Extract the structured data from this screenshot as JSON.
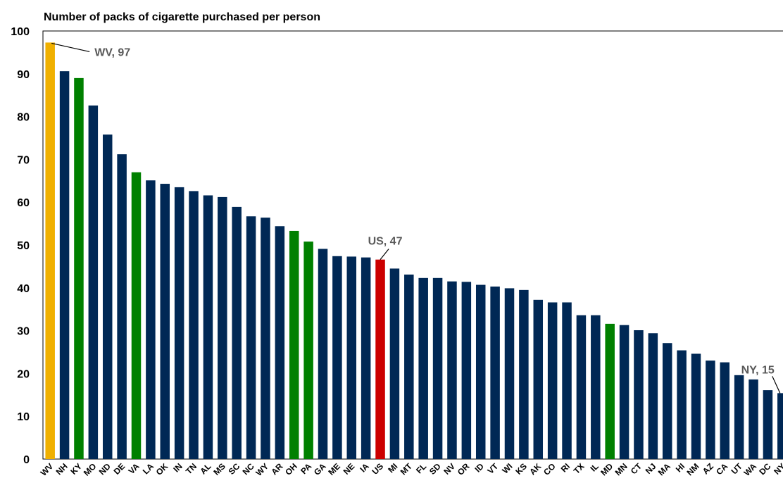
{
  "chart_data": {
    "type": "bar",
    "title": "Number of packs of cigarette purchased per person",
    "xlabel": "",
    "ylabel": "",
    "ylim": [
      0,
      100
    ],
    "yticks": [
      0,
      10,
      20,
      30,
      40,
      50,
      60,
      70,
      80,
      90,
      100
    ],
    "grid": false,
    "categories": [
      "WV",
      "NH",
      "KY",
      "MO",
      "ND",
      "DE",
      "VA",
      "LA",
      "OK",
      "IN",
      "TN",
      "AL",
      "MS",
      "SC",
      "NC",
      "WY",
      "AR",
      "OH",
      "PA",
      "GA",
      "ME",
      "NE",
      "IA",
      "US",
      "MI",
      "MT",
      "FL",
      "SD",
      "NV",
      "OR",
      "ID",
      "VT",
      "WI",
      "KS",
      "AK",
      "CO",
      "RI",
      "TX",
      "IL",
      "MD",
      "MN",
      "CT",
      "NJ",
      "MA",
      "HI",
      "NM",
      "AZ",
      "CA",
      "UT",
      "WA",
      "DC",
      "NY"
    ],
    "values": [
      97.3,
      90.6,
      89.0,
      82.6,
      75.8,
      71.2,
      67.0,
      65.1,
      64.3,
      63.5,
      62.6,
      61.6,
      61.2,
      58.9,
      56.7,
      56.4,
      54.4,
      53.3,
      50.8,
      49.1,
      47.4,
      47.3,
      47.1,
      46.6,
      44.5,
      43.1,
      42.3,
      42.3,
      41.5,
      41.4,
      40.7,
      40.3,
      39.9,
      39.5,
      37.2,
      36.6,
      36.6,
      33.6,
      33.6,
      31.6,
      31.3,
      30.1,
      29.4,
      27.1,
      25.4,
      24.6,
      23.0,
      22.6,
      19.6,
      18.6,
      16.1,
      15.4
    ],
    "colors": {
      "default": "#002855",
      "WV": "#f0b000",
      "KY": "#008000",
      "VA": "#008000",
      "OH": "#008000",
      "PA": "#008000",
      "MD": "#008000",
      "US": "#cc0000"
    },
    "annotations": [
      {
        "category": "WV",
        "text": "WV, 97"
      },
      {
        "category": "US",
        "text": "US, 47"
      },
      {
        "category": "NY",
        "text": "NY, 15"
      }
    ]
  }
}
